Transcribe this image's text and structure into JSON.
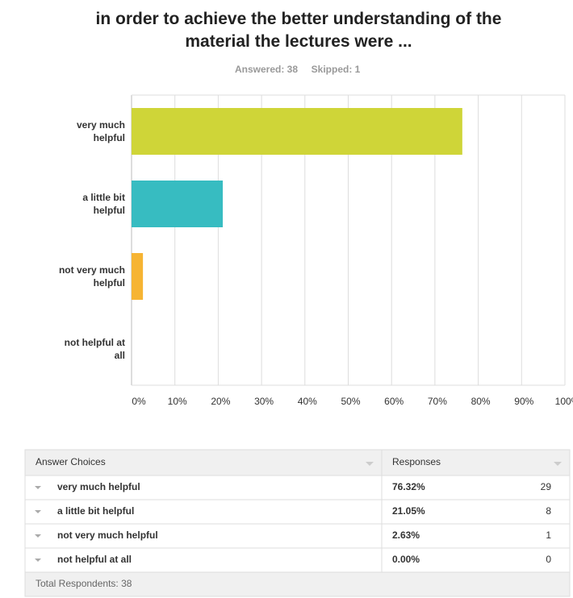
{
  "chart_data": {
    "type": "hbar",
    "title": "in order to achieve the better understanding of the material the lectures were ...",
    "answered": "Answered: 38",
    "skipped": "Skipped: 1",
    "categories": [
      "very much helpful",
      "a little bit helpful",
      "not very much helpful",
      "not helpful at all"
    ],
    "values": [
      76.32,
      21.05,
      2.63,
      0
    ],
    "colors": [
      "#cfd538",
      "#37bcc1",
      "#f6b433",
      "#e5603f"
    ],
    "xlim": [
      0,
      100
    ],
    "xticks": [
      {
        "value": 0,
        "label": "0%"
      },
      {
        "value": 10,
        "label": "10%"
      },
      {
        "value": 20,
        "label": "20%"
      },
      {
        "value": 30,
        "label": "30%"
      },
      {
        "value": 40,
        "label": "40%"
      },
      {
        "value": 50,
        "label": "50%"
      },
      {
        "value": 60,
        "label": "60%"
      },
      {
        "value": 70,
        "label": "70%"
      },
      {
        "value": 80,
        "label": "80%"
      },
      {
        "value": 90,
        "label": "90%"
      },
      {
        "value": 100,
        "label": "100%"
      }
    ],
    "grid": true
  },
  "table": {
    "columns": [
      "Answer Choices",
      "Responses"
    ],
    "rows": [
      [
        "very much helpful",
        "76.32%",
        "29"
      ],
      [
        "a little bit helpful",
        "21.05%",
        "8"
      ],
      [
        "not very much helpful",
        "2.63%",
        "1"
      ],
      [
        "not helpful at all",
        "0.00%",
        "0"
      ]
    ],
    "total": "Total Respondents: 38"
  }
}
